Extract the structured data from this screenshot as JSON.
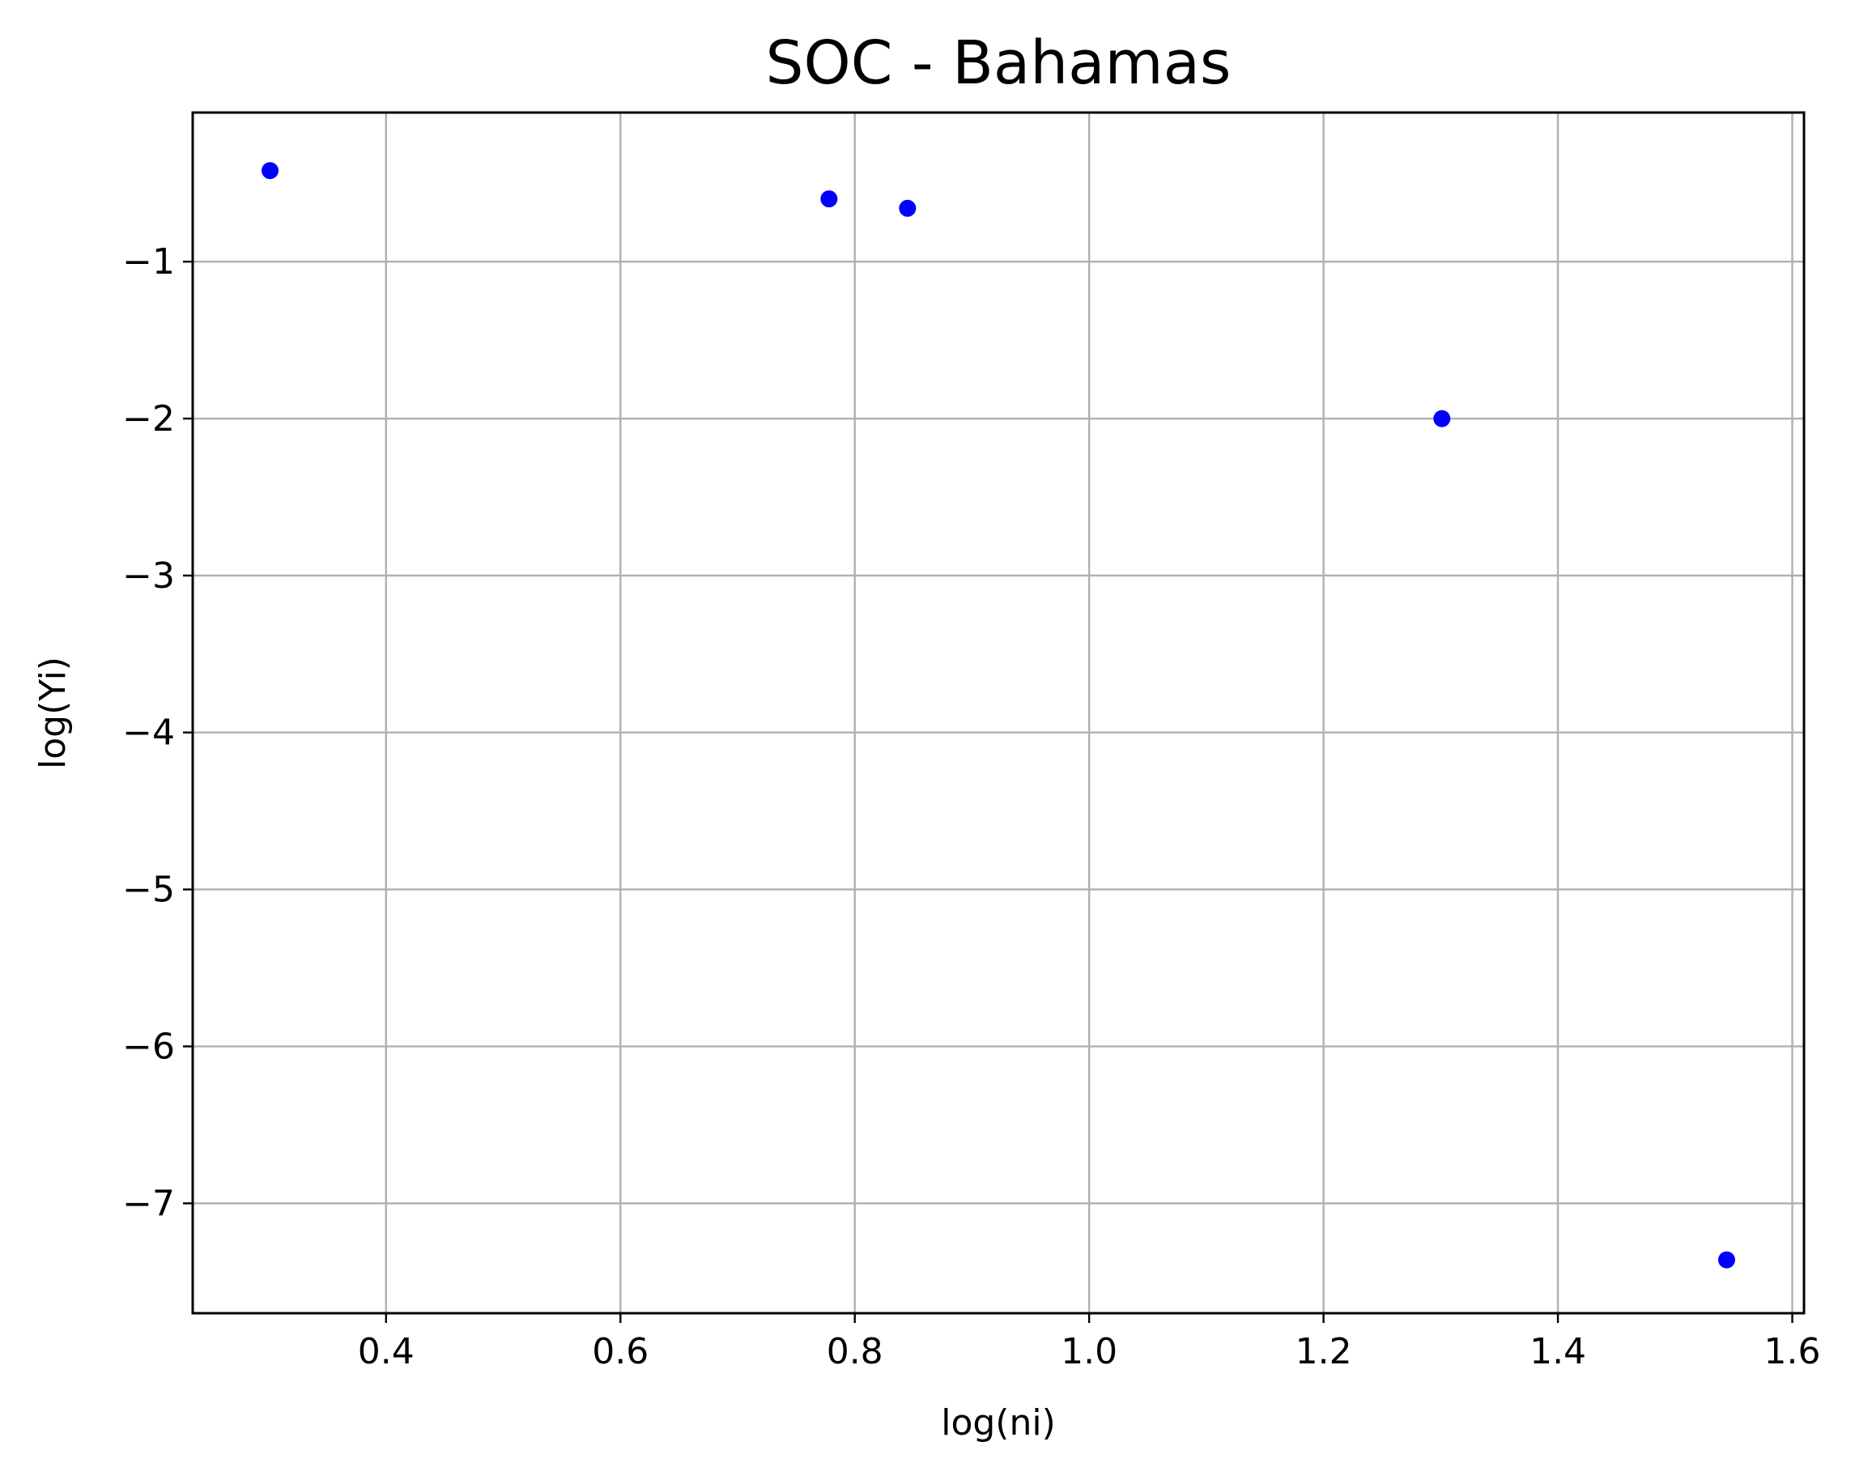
{
  "chart_data": {
    "type": "scatter",
    "title": "SOC - Bahamas",
    "xlabel": "log(ni)",
    "ylabel": "log(Yi)",
    "xlim": [
      0.235,
      1.61
    ],
    "ylim": [
      -7.7,
      -0.05
    ],
    "x_ticks": [
      0.4,
      0.6,
      0.8,
      1.0,
      1.2,
      1.4,
      1.6
    ],
    "x_tick_labels": [
      "0.4",
      "0.6",
      "0.8",
      "1.0",
      "1.2",
      "1.4",
      "1.6"
    ],
    "y_ticks": [
      -1,
      -2,
      -3,
      -4,
      -5,
      -6,
      -7
    ],
    "y_tick_labels": [
      "−1",
      "−2",
      "−3",
      "−4",
      "−5",
      "−6",
      "−7"
    ],
    "grid": true,
    "series": [
      {
        "color": "#0000ff",
        "points": [
          {
            "x": 0.301,
            "y": -0.42
          },
          {
            "x": 0.778,
            "y": -0.6
          },
          {
            "x": 0.845,
            "y": -0.66
          },
          {
            "x": 1.301,
            "y": -2.0
          },
          {
            "x": 1.544,
            "y": -7.36
          }
        ]
      }
    ]
  }
}
